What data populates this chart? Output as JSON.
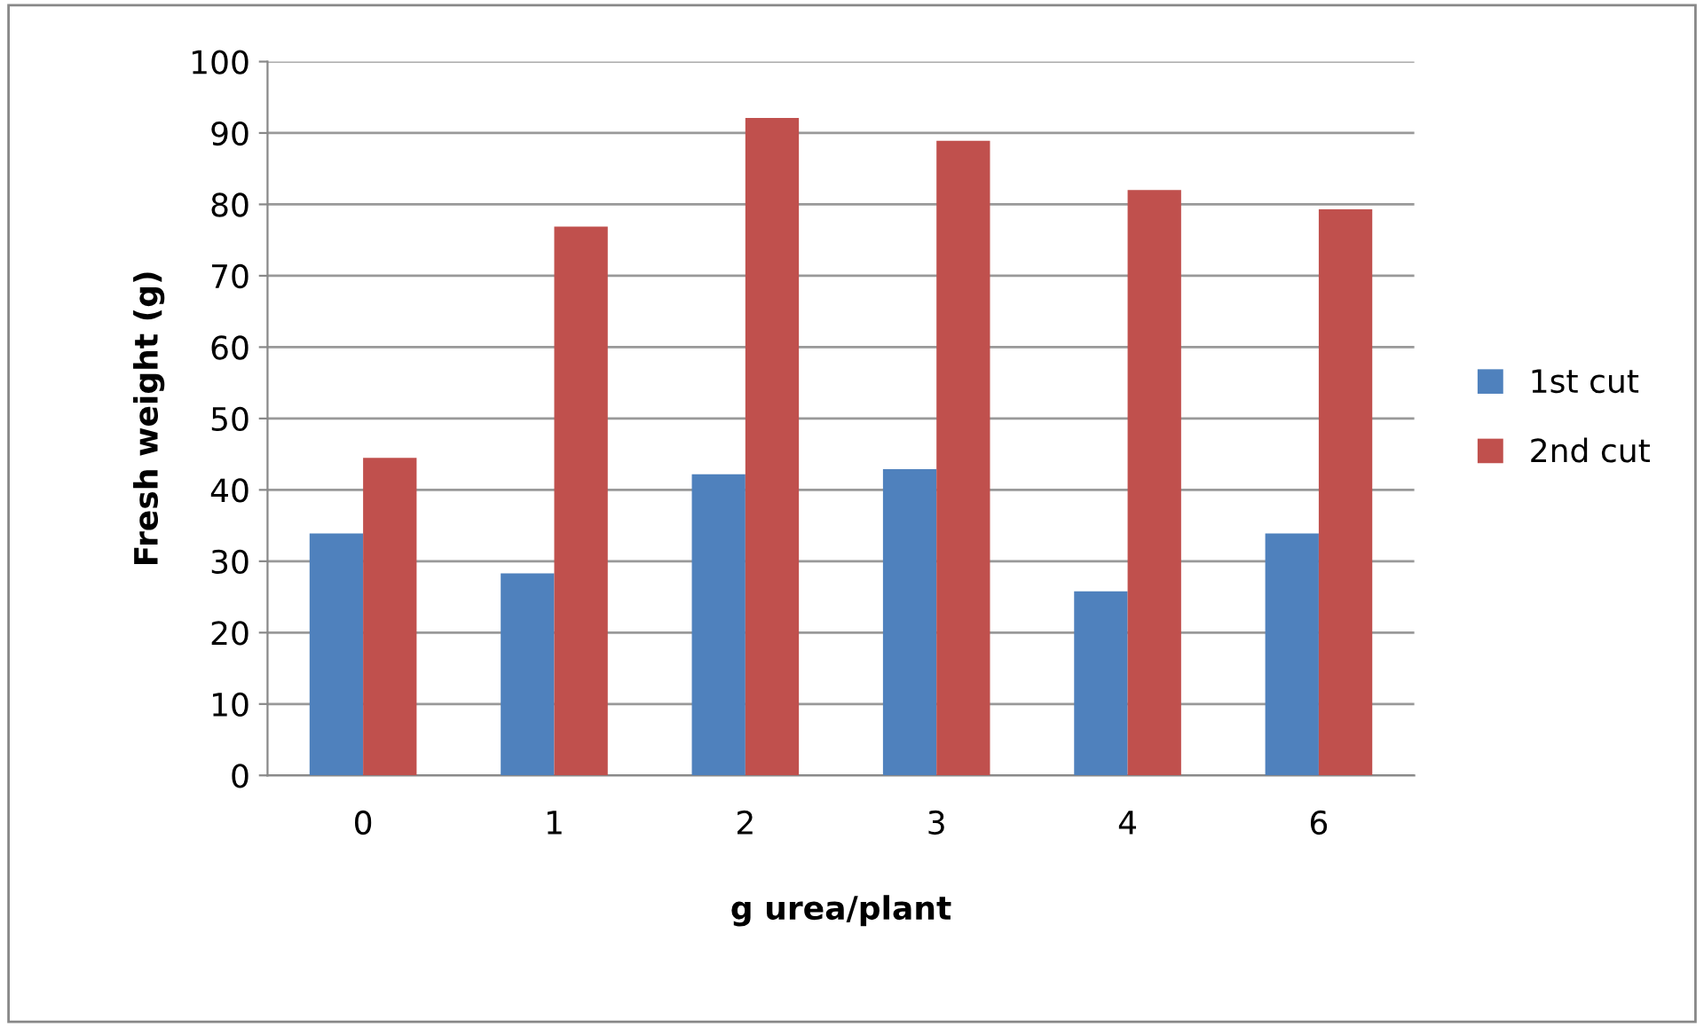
{
  "chart_data": {
    "type": "bar",
    "xlabel": "g urea/plant",
    "ylabel": "Fresh weight (g)",
    "categories": [
      "0",
      "1",
      "2",
      "3",
      "4",
      "6"
    ],
    "series": [
      {
        "name": "1st cut",
        "color": "#4f81bd",
        "values": [
          33.9,
          28.3,
          42.2,
          42.9,
          25.8,
          33.9
        ]
      },
      {
        "name": "2nd cut",
        "color": "#c0504d",
        "values": [
          44.5,
          76.9,
          92.1,
          88.9,
          82.0,
          79.3
        ]
      }
    ],
    "ylim": [
      0,
      100
    ],
    "yticks": [
      0,
      10,
      20,
      30,
      40,
      50,
      60,
      70,
      80,
      90,
      100
    ],
    "grid": "y",
    "legend": "right"
  }
}
